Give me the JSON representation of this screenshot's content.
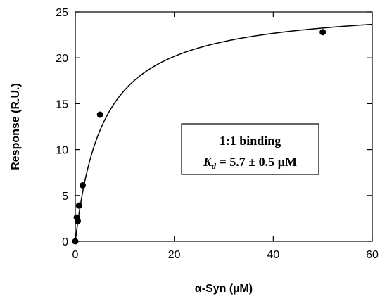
{
  "chart_data": {
    "type": "scatter",
    "xlabel": "α-Syn (µM)",
    "ylabel": "Response (R.U.)",
    "xlim": [
      0,
      60
    ],
    "ylim": [
      0,
      25
    ],
    "xticks": [
      0,
      20,
      40,
      60
    ],
    "yticks": [
      0,
      5,
      10,
      15,
      20,
      25
    ],
    "grid": false,
    "series": [
      {
        "kind": "points",
        "x": [
          0,
          0.3,
          0.5,
          0.75,
          1.5,
          5,
          50
        ],
        "y": [
          0,
          2.6,
          2.2,
          3.9,
          6.1,
          13.8,
          22.8
        ]
      },
      {
        "kind": "fit-curve",
        "model": "1:1 binding",
        "rmax": 25.9,
        "kd": 5.7
      }
    ],
    "annotation": {
      "line1": "1:1 binding",
      "kd_symbol": "K",
      "kd_subscript": "d",
      "kd_value": " = 5.7 ± 0.5 µM"
    }
  }
}
